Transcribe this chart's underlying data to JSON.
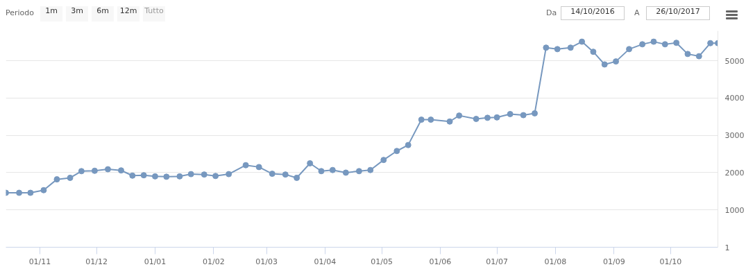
{
  "chart_data": {
    "type": "line",
    "annotations": [
      "Periodo",
      "1m",
      "3m",
      "6m",
      "12m",
      "Tutto",
      "Da",
      "14/10/2016",
      "A",
      "26/10/2017"
    ],
    "x": [
      "2016-10-14",
      "2016-10-21",
      "2016-10-27",
      "2016-11-03",
      "2016-11-10",
      "2016-11-17",
      "2016-11-23",
      "2016-11-30",
      "2016-12-07",
      "2016-12-14",
      "2016-12-20",
      "2016-12-26",
      "2017-01-01",
      "2017-01-07",
      "2017-01-14",
      "2017-01-20",
      "2017-01-27",
      "2017-02-02",
      "2017-02-09",
      "2017-02-18",
      "2017-02-25",
      "2017-03-04",
      "2017-03-11",
      "2017-03-17",
      "2017-03-24",
      "2017-03-30",
      "2017-04-05",
      "2017-04-12",
      "2017-04-19",
      "2017-04-25",
      "2017-05-02",
      "2017-05-09",
      "2017-05-15",
      "2017-05-22",
      "2017-05-27",
      "2017-06-06",
      "2017-06-11",
      "2017-06-20",
      "2017-06-26",
      "2017-07-01",
      "2017-07-08",
      "2017-07-15",
      "2017-07-21",
      "2017-07-27",
      "2017-08-02",
      "2017-08-09",
      "2017-08-15",
      "2017-08-21",
      "2017-08-27",
      "2017-09-02",
      "2017-09-09",
      "2017-09-16",
      "2017-09-22",
      "2017-09-28",
      "2017-10-04",
      "2017-10-10",
      "2017-10-16",
      "2017-10-22",
      "2017-10-26"
    ],
    "series": [
      {
        "color": "#7798bf",
        "values": [
          1460,
          1460,
          1460,
          1530,
          1820,
          1860,
          2040,
          2050,
          2090,
          2060,
          1920,
          1930,
          1900,
          1890,
          1900,
          1960,
          1950,
          1910,
          1960,
          2200,
          2150,
          1970,
          1950,
          1860,
          2250,
          2040,
          2070,
          2000,
          2040,
          2070,
          2340,
          2580,
          2740,
          3420,
          3420,
          3370,
          3530,
          3440,
          3470,
          3480,
          3570,
          3540,
          3590,
          5350,
          5310,
          5350,
          5510,
          5240,
          4900,
          4980,
          5310,
          5440,
          5510,
          5440,
          5480,
          5180,
          5120,
          5470,
          5470
        ]
      }
    ],
    "xlim": [
      "2016-10-14",
      "2017-10-26"
    ],
    "xticks": [
      {
        "value": "2016-11-01",
        "label": "01/11"
      },
      {
        "value": "2016-12-01",
        "label": "01/12"
      },
      {
        "value": "2017-01-01",
        "label": "01/01"
      },
      {
        "value": "2017-02-01",
        "label": "01/02"
      },
      {
        "value": "2017-03-01",
        "label": "01/03"
      },
      {
        "value": "2017-04-01",
        "label": "01/04"
      },
      {
        "value": "2017-05-01",
        "label": "01/05"
      },
      {
        "value": "2017-06-01",
        "label": "01/06"
      },
      {
        "value": "2017-07-01",
        "label": "01/07"
      },
      {
        "value": "2017-08-01",
        "label": "01/08"
      },
      {
        "value": "2017-09-01",
        "label": "01/09"
      },
      {
        "value": "2017-10-01",
        "label": "01/10"
      }
    ],
    "ylim": [
      1,
      5800
    ],
    "yticks": [
      {
        "value": 1,
        "label": "1"
      },
      1000,
      2000,
      3000,
      4000,
      5000
    ],
    "grid": "y",
    "marker": "circle",
    "line_style": "solid"
  }
}
